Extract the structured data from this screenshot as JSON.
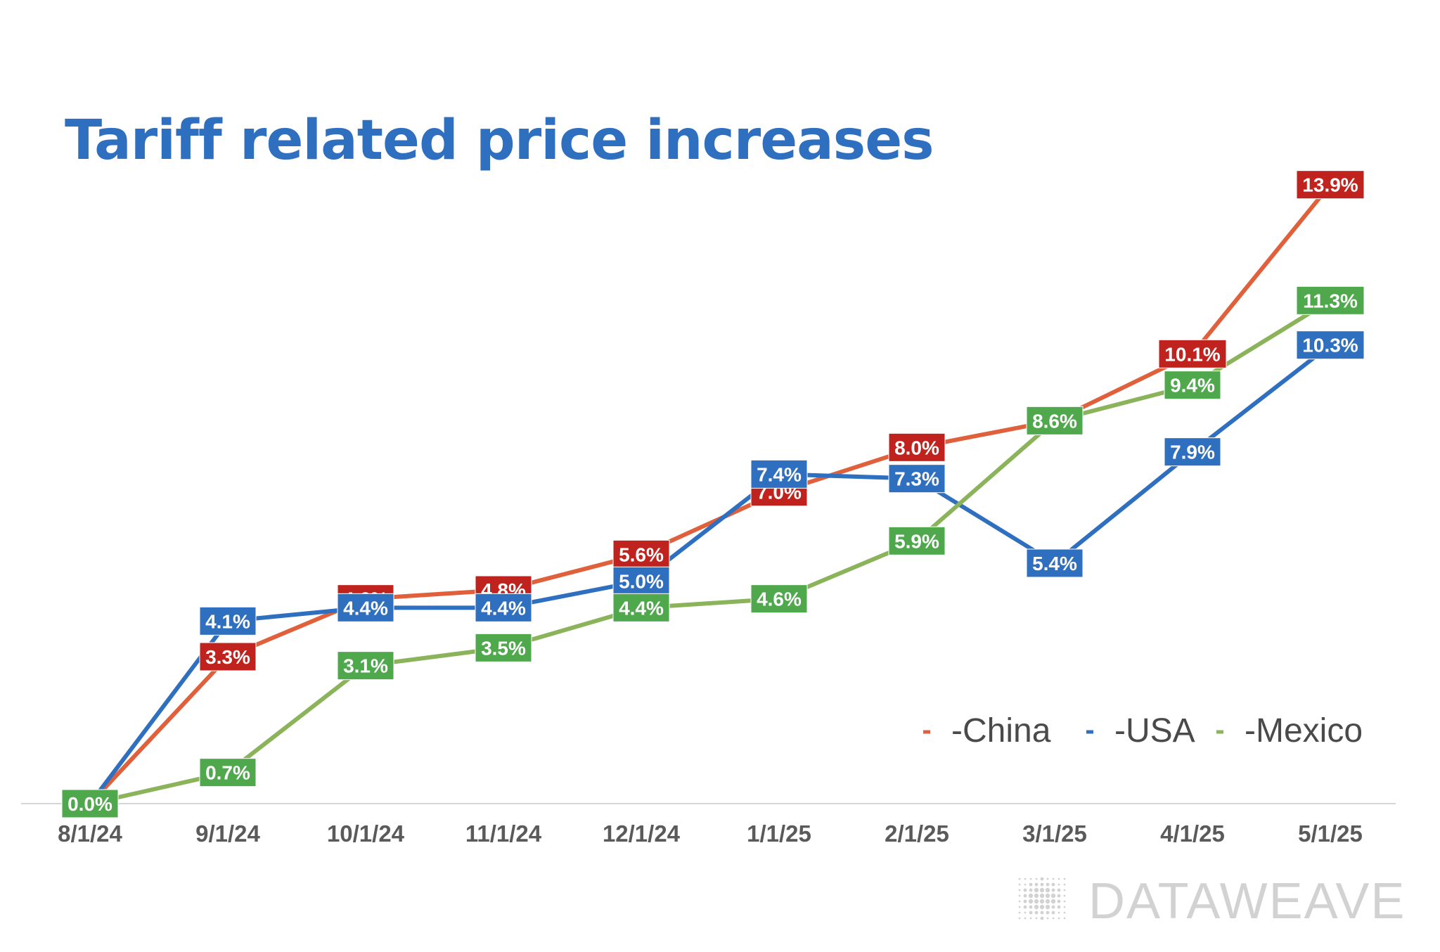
{
  "chart_data": {
    "type": "line",
    "title": "Tariff related price increases",
    "xlabel": "",
    "ylabel": "",
    "x": [
      "8/1/24",
      "9/1/24",
      "10/1/24",
      "11/1/24",
      "12/1/24",
      "1/1/25",
      "2/1/25",
      "3/1/25",
      "4/1/25",
      "5/1/25"
    ],
    "ylim": [
      0,
      15
    ],
    "grid": false,
    "legend_position": "bottom-right",
    "series": [
      {
        "name": "China",
        "color": "#e0603c",
        "label_color": "#c0221d",
        "values": [
          0.0,
          3.3,
          4.6,
          4.8,
          5.6,
          7.0,
          8.0,
          8.6,
          10.1,
          13.9
        ],
        "labels": [
          "0.0%",
          "3.3%",
          "4.6%",
          "4.8%",
          "5.6%",
          "7.0%",
          "8.0%",
          "8.6%",
          "10.1%",
          "13.9%"
        ]
      },
      {
        "name": "USA",
        "color": "#2f6fbf",
        "label_color": "#2f6fbf",
        "values": [
          0.0,
          4.1,
          4.4,
          4.4,
          5.0,
          7.4,
          7.3,
          5.4,
          7.9,
          10.3
        ],
        "labels": [
          "0.0%",
          "4.1%",
          "4.4%",
          "4.4%",
          "5.0%",
          "7.4%",
          "7.3%",
          "5.4%",
          "7.9%",
          "10.3%"
        ]
      },
      {
        "name": "Mexico",
        "color": "#8ab35a",
        "label_color": "#4fa84c",
        "values": [
          0.0,
          0.7,
          3.1,
          3.5,
          4.4,
          4.6,
          5.9,
          8.6,
          9.4,
          11.3
        ],
        "labels": [
          "0.0%",
          "0.7%",
          "3.1%",
          "3.5%",
          "4.4%",
          "4.6%",
          "5.9%",
          "8.6%",
          "9.4%",
          "11.3%"
        ]
      }
    ],
    "legend": [
      {
        "label": "-China",
        "color": "#e0603c"
      },
      {
        "label": "-USA",
        "color": "#2f6fbf"
      },
      {
        "label": "-Mexico",
        "color": "#8ab35a"
      }
    ]
  },
  "brand": {
    "logo_text": "DATAWEAVE",
    "logo_color": "#d2d2d2"
  }
}
